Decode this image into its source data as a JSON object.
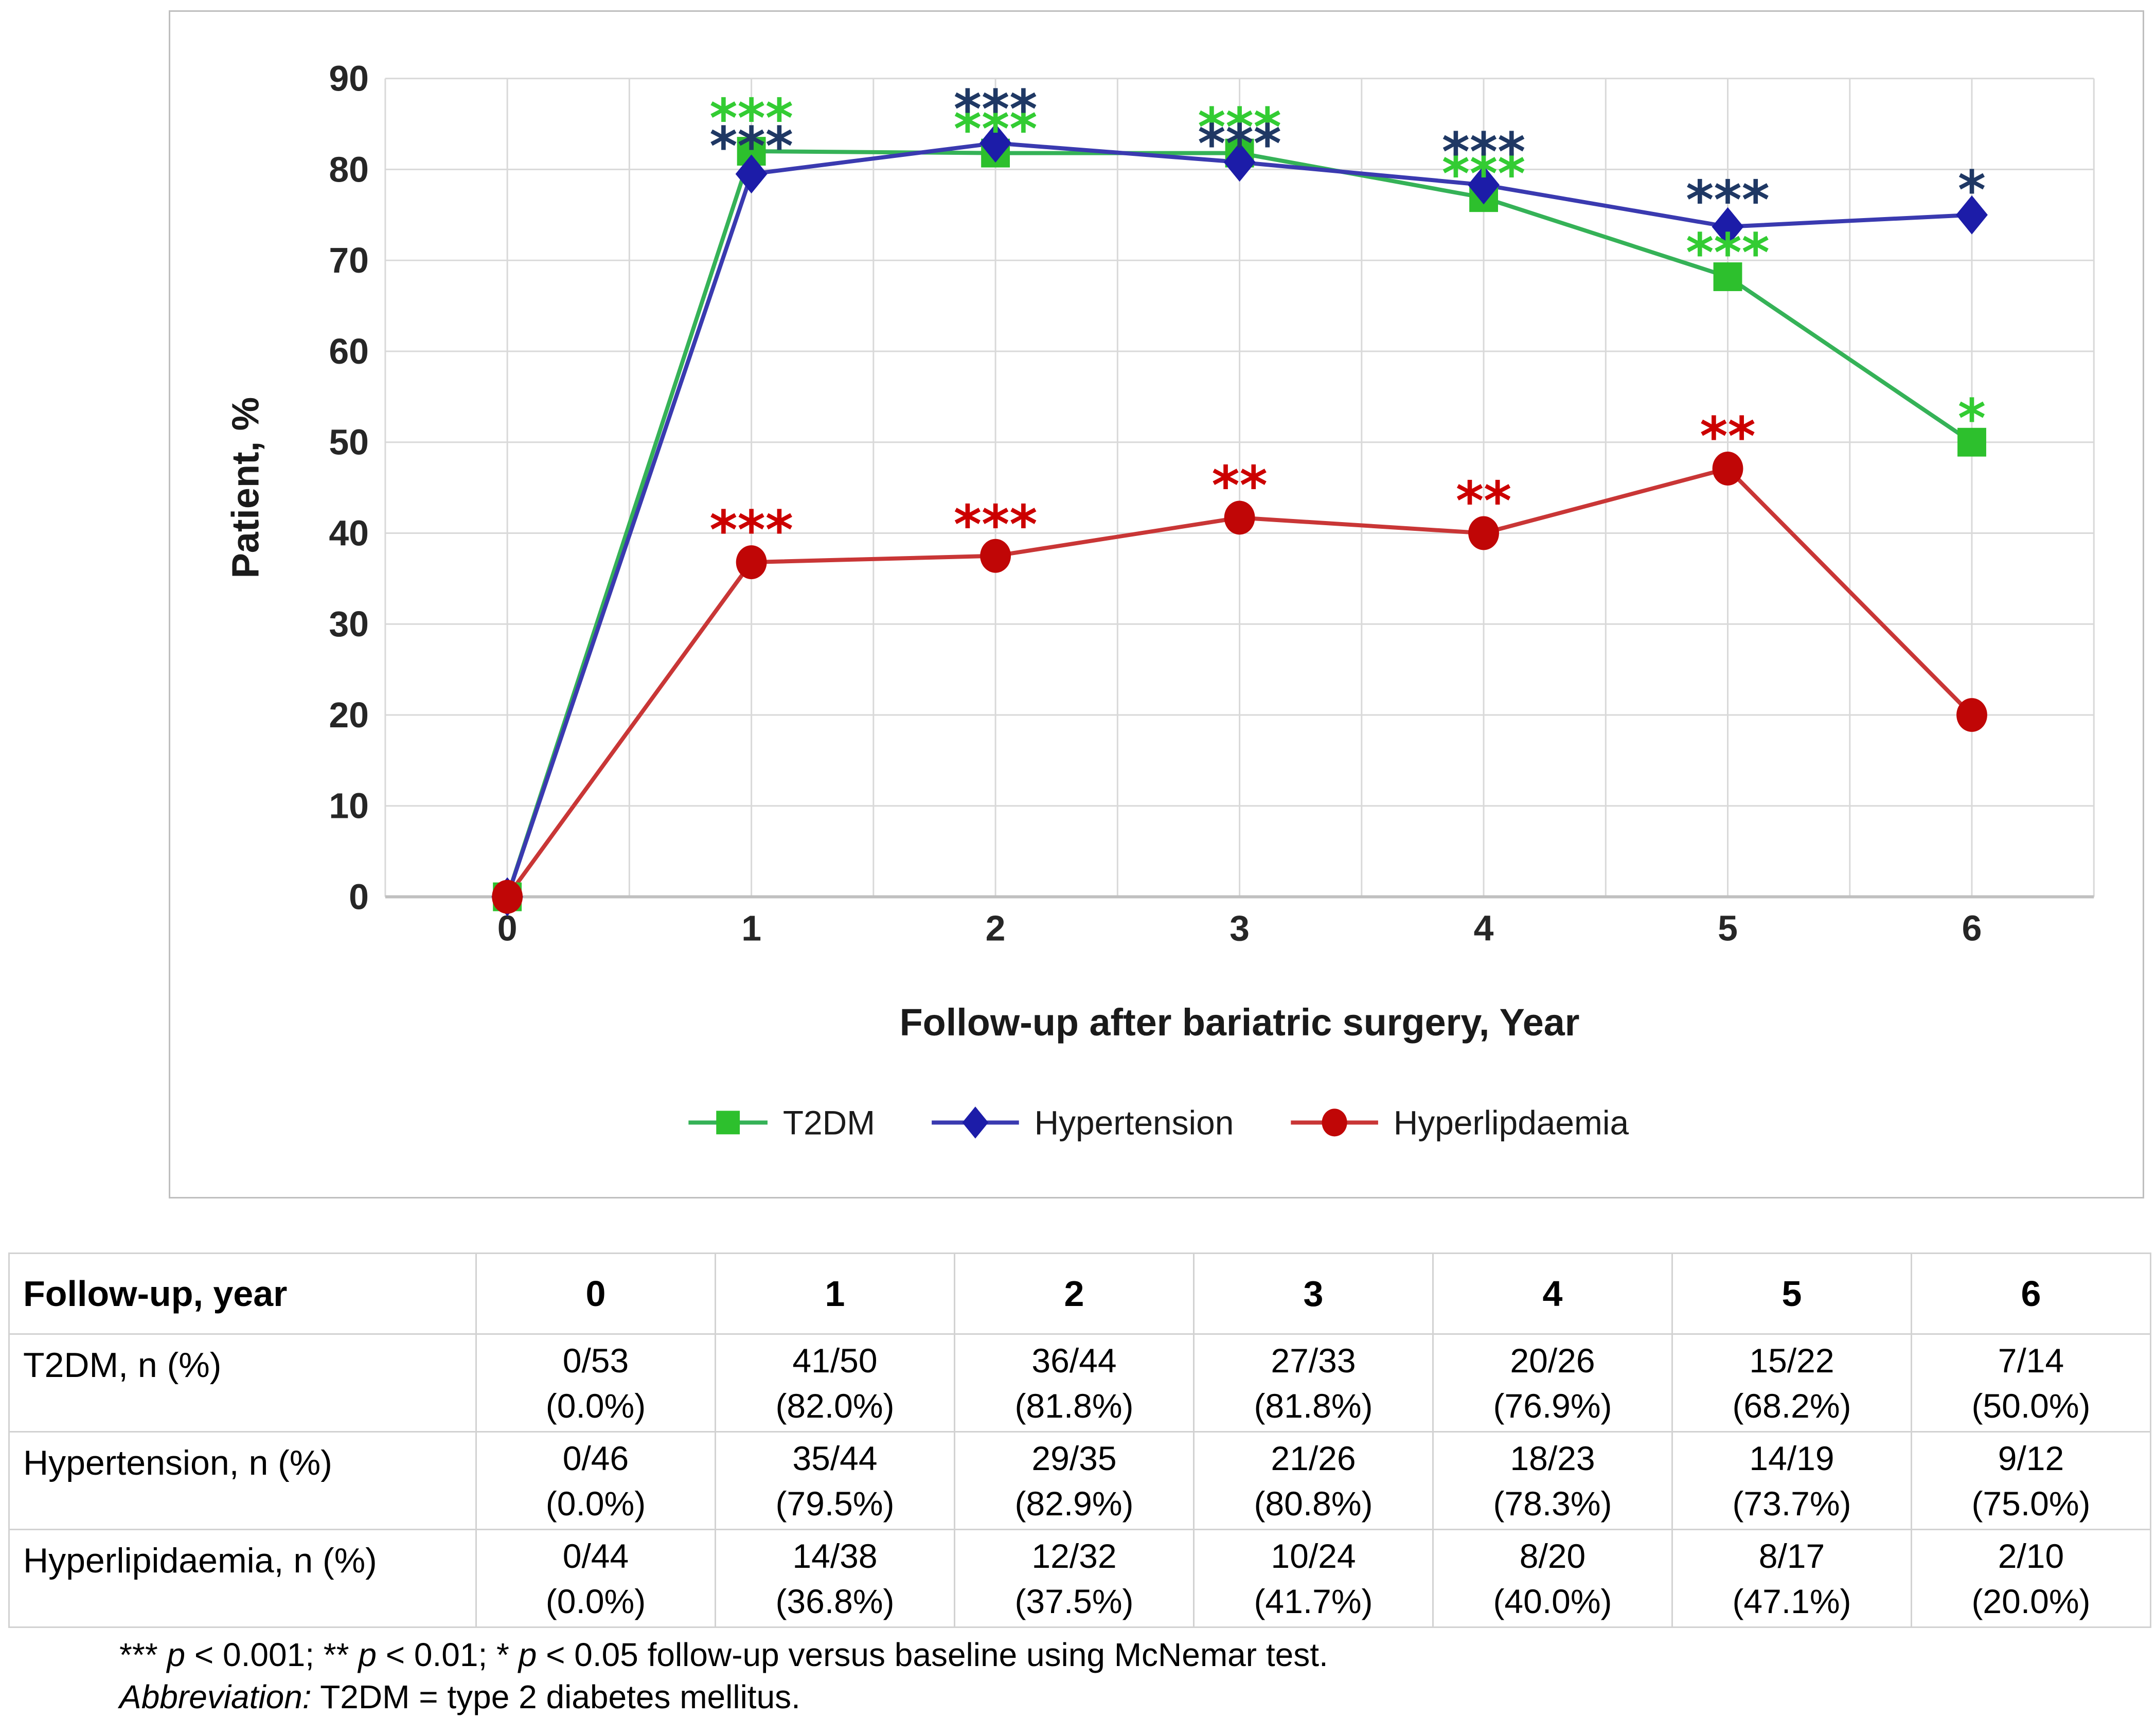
{
  "chart_data": {
    "type": "line",
    "title": "",
    "xlabel": "Follow-up after bariatric surgery, Year",
    "ylabel": "Patient, %",
    "ylim": [
      0,
      90
    ],
    "ytick_step": 10,
    "categories": [
      0,
      1,
      2,
      3,
      4,
      5,
      6
    ],
    "x_minor_grid_step": 0.5,
    "grid": true,
    "legend_position": "bottom",
    "series": [
      {
        "name": "T2DM",
        "marker": "square",
        "line_color": "#35B257",
        "marker_color": "#2DC02D",
        "star_color": "#33CC33",
        "values": [
          0.0,
          82.0,
          81.8,
          81.8,
          76.9,
          68.2,
          50.0
        ],
        "sig": [
          "",
          "***",
          "***",
          "***",
          "***",
          "***",
          "*"
        ],
        "sig_offset": [
          0,
          4.3,
          3.3,
          3.5,
          3.3,
          3.3,
          3.3
        ]
      },
      {
        "name": "Hypertension",
        "marker": "diamond",
        "line_color": "#3A3AB0",
        "marker_color": "#1C1CA8",
        "star_color": "#1F3864",
        "values": [
          0.0,
          79.5,
          82.9,
          80.8,
          78.3,
          73.7,
          75.0
        ],
        "sig": [
          "",
          "***",
          "***",
          "***",
          "***",
          "***",
          "*"
        ],
        "sig_offset": [
          0,
          3.7,
          4.4,
          2.7,
          4.3,
          3.6,
          3.4
        ]
      },
      {
        "name": "Hyperlipdaemia",
        "marker": "circle",
        "line_color": "#C93636",
        "marker_color": "#C00606",
        "star_color": "#CC0000",
        "values": [
          0.0,
          36.8,
          37.5,
          41.7,
          40.0,
          47.1,
          20.0
        ],
        "sig": [
          "",
          "***",
          "***",
          "**",
          "**",
          "**",
          ""
        ],
        "sig_offset": [
          0,
          4.2,
          4.1,
          4.2,
          4.2,
          4.2,
          0
        ]
      }
    ]
  },
  "table": {
    "header": [
      "Follow-up, year",
      "0",
      "1",
      "2",
      "3",
      "4",
      "5",
      "6"
    ],
    "rows": [
      {
        "label": "T2DM, n (%)",
        "values": [
          [
            "0/53",
            "(0.0%)"
          ],
          [
            "41/50",
            "(82.0%)"
          ],
          [
            "36/44",
            "(81.8%)"
          ],
          [
            "27/33",
            "(81.8%)"
          ],
          [
            "20/26",
            "(76.9%)"
          ],
          [
            "15/22",
            "(68.2%)"
          ],
          [
            "7/14",
            "(50.0%)"
          ]
        ]
      },
      {
        "label": "Hypertension, n (%)",
        "values": [
          [
            "0/46",
            "(0.0%)"
          ],
          [
            "35/44",
            "(79.5%)"
          ],
          [
            "29/35",
            "(82.9%)"
          ],
          [
            "21/26",
            "(80.8%)"
          ],
          [
            "18/23",
            "(78.3%)"
          ],
          [
            "14/19",
            "(73.7%)"
          ],
          [
            "9/12",
            "(75.0%)"
          ]
        ]
      },
      {
        "label": "Hyperlipidaemia, n (%)",
        "values": [
          [
            "0/44",
            "(0.0%)"
          ],
          [
            "14/38",
            "(36.8%)"
          ],
          [
            "12/32",
            "(37.5%)"
          ],
          [
            "10/24",
            "(41.7%)"
          ],
          [
            "8/20",
            "(40.0%)"
          ],
          [
            "8/17",
            "(47.1%)"
          ],
          [
            "2/10",
            "(20.0%)"
          ]
        ]
      }
    ]
  },
  "footnotes": {
    "lines": [
      [
        {
          "t": "*** "
        },
        {
          "t": "p",
          "i": true
        },
        {
          "t": " < 0.001; ** "
        },
        {
          "t": "p",
          "i": true
        },
        {
          "t": " < 0.01; * "
        },
        {
          "t": "p",
          "i": true
        },
        {
          "t": " < 0.05 follow-up versus baseline using McNemar test."
        }
      ],
      [
        {
          "t": "Abbreviation:",
          "i": true
        },
        {
          "t": " T2DM = type 2 diabetes mellitus."
        }
      ]
    ]
  }
}
